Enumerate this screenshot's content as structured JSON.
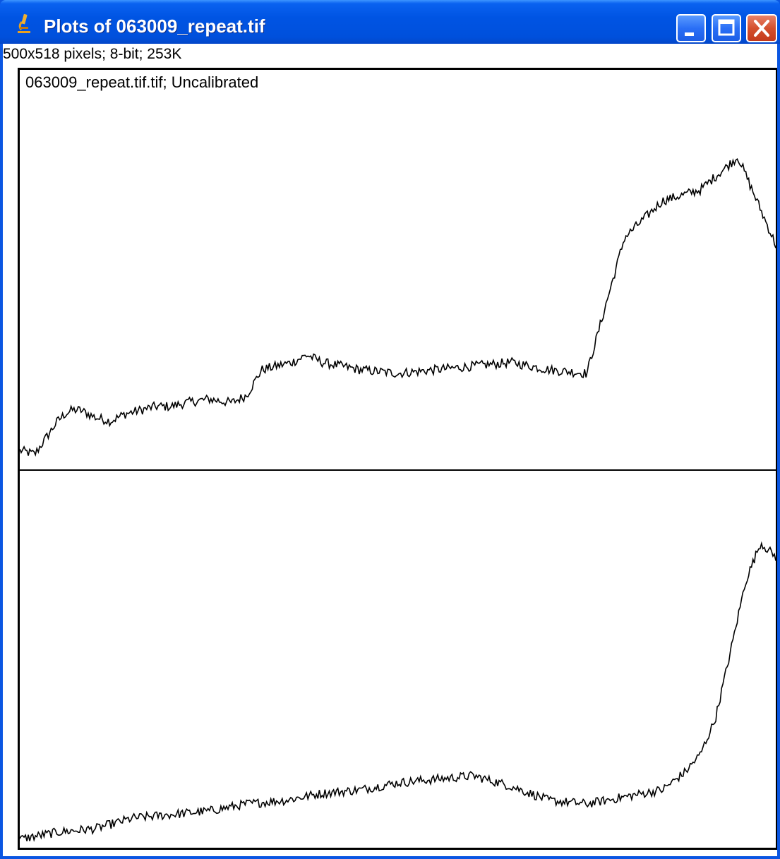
{
  "window": {
    "title": "Plots of 063009_repeat.tif",
    "icon": "microscope-icon",
    "controls": [
      "minimize-icon",
      "maximize-icon",
      "close-icon"
    ]
  },
  "image_info": "500x518 pixels; 8-bit; 253K",
  "plot_label": "063009_repeat.tif.tif; Uncalibrated",
  "colors": {
    "titlebar": "#0054e3",
    "close_button": "#d4502e",
    "plot_line": "#000000",
    "background": "#ffffff"
  },
  "chart_data": [
    {
      "type": "line",
      "ylim": [
        0,
        100
      ],
      "x": [
        0,
        2,
        3,
        4,
        5,
        6,
        7,
        8,
        9,
        10,
        12,
        14,
        16,
        18,
        20,
        22,
        25,
        28,
        30,
        32,
        34,
        36,
        38,
        40,
        45,
        50,
        55,
        60,
        65,
        70,
        75,
        80,
        85,
        90,
        95,
        100
      ],
      "values": [
        4,
        3,
        6,
        9,
        12,
        14,
        15,
        15,
        14,
        13,
        12,
        14,
        15,
        16,
        16,
        17,
        18,
        17,
        19,
        26,
        27,
        28,
        30,
        28,
        26,
        25,
        26,
        27,
        28,
        26,
        25,
        62,
        72,
        75,
        84,
        60
      ]
    },
    {
      "type": "line",
      "ylim": [
        0,
        100
      ],
      "x": [
        0,
        5,
        10,
        15,
        20,
        25,
        30,
        35,
        40,
        45,
        50,
        55,
        60,
        65,
        70,
        75,
        80,
        85,
        88,
        90,
        92,
        94,
        96,
        98,
        100
      ],
      "values": [
        2,
        4,
        5,
        8,
        9,
        10,
        12,
        13,
        15,
        16,
        18,
        19,
        20,
        17,
        13,
        12,
        14,
        16,
        21,
        26,
        36,
        55,
        75,
        86,
        82
      ]
    }
  ]
}
